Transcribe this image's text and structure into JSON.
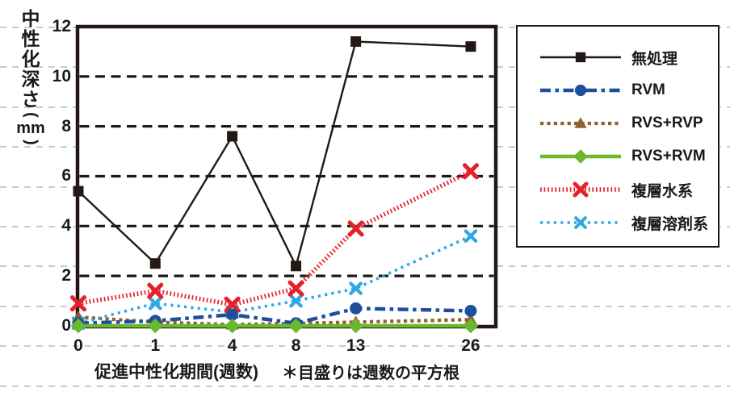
{
  "background": {
    "guide_color": "#b9cee6"
  },
  "chart_data": {
    "type": "line",
    "title": "",
    "xlabel": "促進中性化期間(週数)",
    "xlabel_note": "＊目盛りは週数の平方根",
    "ylabel": "中性化深さ(mm)",
    "ylabel_chars": [
      "中",
      "性",
      "化",
      "深",
      "さ"
    ],
    "ylabel_open_paren": "(",
    "ylabel_unit": "mm",
    "ylabel_close_paren": ")",
    "x_scale": "sqrt-of-weeks",
    "x": [
      0,
      1,
      4,
      8,
      13,
      26
    ],
    "x_tick_labels": [
      "0",
      "1",
      "4",
      "8",
      "13",
      "26"
    ],
    "y_ticks": [
      0,
      2,
      4,
      6,
      8,
      10,
      12
    ],
    "ylim": [
      0,
      12
    ],
    "grid": "horizontal-dashed-black",
    "legend_position": "right-box",
    "frame_color": "#231815",
    "series": [
      {
        "name": "無処理",
        "color": "#231815",
        "line": "solid",
        "line_width": 2.4,
        "marker": "square",
        "marker_size": 13,
        "values": [
          5.4,
          2.5,
          7.6,
          2.4,
          11.4,
          11.2
        ]
      },
      {
        "name": "RVM",
        "color": "#1e4f9f",
        "line": "dashdot",
        "line_width": 4.5,
        "marker": "circle",
        "marker_size": 15,
        "values": [
          0.1,
          0.2,
          0.45,
          0.1,
          0.7,
          0.6
        ]
      },
      {
        "name": "RVS+RVP",
        "color": "#90612e",
        "line": "dotted",
        "line_width": 4.2,
        "marker": "triangle",
        "marker_size": 16,
        "values": [
          0.35,
          0.15,
          0.05,
          0.1,
          0.15,
          0.25
        ]
      },
      {
        "name": "RVS+RVM",
        "color": "#6ab82d",
        "line": "solid",
        "line_width": 4.5,
        "marker": "diamond",
        "marker_size": 15,
        "values": [
          0,
          0,
          0,
          0,
          0,
          0
        ]
      },
      {
        "name": "複層水系",
        "color": "#e5212a",
        "line": "fine-dotted",
        "line_width": 5.5,
        "marker": "x",
        "marker_size": 17,
        "values": [
          0.9,
          1.4,
          0.85,
          1.5,
          3.9,
          6.2
        ]
      },
      {
        "name": "複層溶剤系",
        "color": "#2fa8e1",
        "line": "dotted-sparse",
        "line_width": 3.6,
        "marker": "x",
        "marker_size": 14,
        "values": [
          0.1,
          0.9,
          0.55,
          1.0,
          1.5,
          3.6
        ]
      }
    ]
  }
}
